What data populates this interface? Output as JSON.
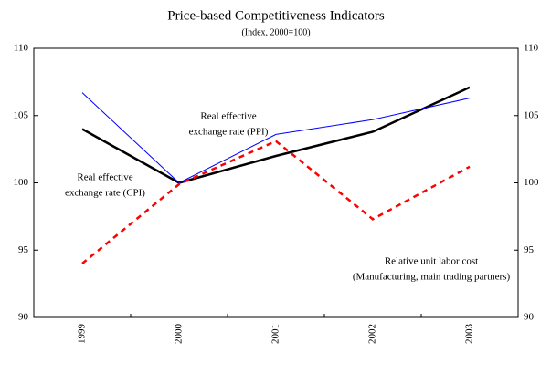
{
  "chart_data": {
    "type": "line",
    "title": "Price-based Competitiveness Indicators",
    "subtitle": "(Index, 2000=100)",
    "categories": [
      "1999",
      "2000",
      "2001",
      "2002",
      "2003"
    ],
    "series": [
      {
        "name": "Real effective exchange rate (CPI)",
        "color": "#000000",
        "values": [
          104.0,
          100.0,
          102.0,
          103.8,
          107.1
        ]
      },
      {
        "name": "Real effective exchange rate (PPI)",
        "color": "#0000ff",
        "values": [
          106.7,
          100.0,
          103.6,
          104.7,
          106.3
        ]
      },
      {
        "name": "Relative unit labor cost (Manufacturing, main trading partners)",
        "color": "#ff0000",
        "values": [
          94.0,
          99.9,
          103.1,
          97.3,
          101.2
        ]
      }
    ],
    "annotations": [
      [
        "Real effective",
        "exchange rate (PPI)"
      ],
      [
        "Real effective",
        "exchange rate (CPI)"
      ],
      [
        "Relative unit labor cost",
        "(Manufacturing, main trading partners)"
      ]
    ],
    "ylim": [
      90,
      110
    ],
    "yticks": [
      90,
      95,
      100,
      105,
      110
    ],
    "y2lim": [
      90,
      110
    ],
    "y2ticks": [
      90,
      95,
      100,
      105,
      110
    ],
    "grid": false
  }
}
